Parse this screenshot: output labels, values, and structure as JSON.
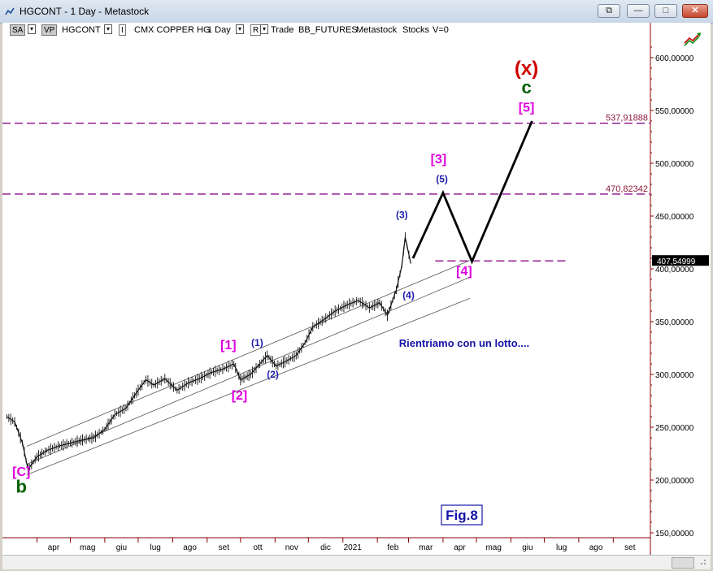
{
  "window": {
    "title": "HGCONT - 1 Day - Metastock",
    "btn_restore_extra": "⧉",
    "btn_minimize": "—",
    "btn_maximize": "□",
    "btn_close": "✕"
  },
  "toolbar": {
    "sa": "SA",
    "vp": "VP",
    "symbol": "HGCONT",
    "indicator_flag": "I",
    "security_name": "CMX COPPER HG",
    "period": "1 Day",
    "r_flag": "R",
    "trade": "Trade",
    "source": "BB_FUTURES",
    "app": "Metastock",
    "type": "Stocks",
    "volume": "V=0"
  },
  "chart_data": {
    "type": "line",
    "title": "",
    "xlabel": "",
    "ylabel": "",
    "ylim": [
      145,
      620
    ],
    "y_ticks": [
      "150,00000",
      "200,00000",
      "250,00000",
      "300,00000",
      "350,00000",
      "400,00000",
      "450,00000",
      "500,00000",
      "550,00000",
      "600,00000"
    ],
    "y_tick_values": [
      150,
      200,
      250,
      300,
      350,
      400,
      450,
      500,
      550,
      600
    ],
    "x_ticks": [
      "apr",
      "mag",
      "giu",
      "lug",
      "ago",
      "set",
      "ott",
      "nov",
      "dic",
      "2021",
      "feb",
      "mar",
      "apr",
      "mag",
      "giu",
      "lug",
      "ago",
      "set"
    ],
    "x_tick_values": [
      "2020-04",
      "2020-05",
      "2020-06",
      "2020-07",
      "2020-08",
      "2020-09",
      "2020-10",
      "2020-11",
      "2020-12",
      "2021-01",
      "2021-02",
      "2021-03",
      "2021-04",
      "2021-05",
      "2021-06",
      "2021-07",
      "2021-08",
      "2021-09"
    ],
    "levels": [
      {
        "label": "537,91888",
        "value": 537.92
      },
      {
        "label": "470,82342",
        "value": 470.82
      }
    ],
    "last_price": {
      "label": "407,54999",
      "value": 407.55
    },
    "series": [
      {
        "name": "",
        "x": [
          "2020-03-05",
          "2020-03-12",
          "2020-03-19",
          "2020-03-24",
          "2020-04-01",
          "2020-04-10",
          "2020-04-20",
          "2020-05-01",
          "2020-05-12",
          "2020-05-22",
          "2020-06-01",
          "2020-06-10",
          "2020-06-20",
          "2020-07-01",
          "2020-07-08",
          "2020-07-15",
          "2020-07-25",
          "2020-08-05",
          "2020-08-15",
          "2020-08-25",
          "2020-09-05",
          "2020-09-15",
          "2020-09-25",
          "2020-10-01",
          "2020-10-10",
          "2020-10-20",
          "2020-10-25",
          "2020-11-02",
          "2020-11-10",
          "2020-11-20",
          "2020-11-28",
          "2020-12-05",
          "2020-12-15",
          "2020-12-25",
          "2021-01-05",
          "2021-01-15",
          "2021-01-25",
          "2021-02-03",
          "2021-02-10",
          "2021-02-18",
          "2021-02-23",
          "2021-02-26",
          "2021-03-03"
        ],
        "y": [
          260,
          255,
          235,
          210,
          222,
          228,
          232,
          235,
          238,
          240,
          248,
          262,
          268,
          285,
          295,
          290,
          296,
          285,
          292,
          296,
          302,
          305,
          310,
          295,
          300,
          312,
          318,
          308,
          312,
          318,
          330,
          345,
          352,
          360,
          366,
          370,
          363,
          368,
          356,
          380,
          403,
          430,
          405
        ]
      },
      {
        "name": "",
        "x": [
          "2021-03-05",
          "2021-04-01",
          "2021-04-27",
          "2021-06-20"
        ],
        "y": [
          410,
          472,
          407,
          540
        ]
      }
    ],
    "channel": [
      {
        "x": [
          "2020-03-23",
          "2021-04-25"
        ],
        "y": [
          232,
          408
        ]
      },
      {
        "x": [
          "2020-03-23",
          "2021-04-25"
        ],
        "y": [
          215,
          392
        ]
      },
      {
        "x": [
          "2020-03-23",
          "2021-04-25"
        ],
        "y": [
          205,
          372
        ]
      }
    ],
    "wave_labels": [
      {
        "text": "[C]",
        "x": "2020-03-18",
        "y": 204,
        "color": "#e000e0"
      },
      {
        "text": "b",
        "x": "2020-03-18",
        "y": 188,
        "color": "#006000"
      },
      {
        "text": "[1]",
        "x": "2020-09-20",
        "y": 324,
        "color": "#e000e0"
      },
      {
        "text": "[2]",
        "x": "2020-09-30",
        "y": 276,
        "color": "#e000e0"
      },
      {
        "text": "(1)",
        "x": "2020-10-16",
        "y": 327,
        "color": "#1f1fb0"
      },
      {
        "text": "(2)",
        "x": "2020-10-30",
        "y": 297,
        "color": "#1f1fb0"
      },
      {
        "text": "(3)",
        "x": "2021-02-23",
        "y": 448,
        "color": "#1f1fb0"
      },
      {
        "text": "(4)",
        "x": "2021-03-01",
        "y": 372,
        "color": "#1f1fb0"
      },
      {
        "text": "[3]",
        "x": "2021-03-28",
        "y": 500,
        "color": "#e000e0"
      },
      {
        "text": "(5)",
        "x": "2021-03-31",
        "y": 482,
        "color": "#1f1fb0"
      },
      {
        "text": "[4]",
        "x": "2021-04-20",
        "y": 394,
        "color": "#e000e0"
      },
      {
        "text": "[5]",
        "x": "2021-06-15",
        "y": 549,
        "color": "#e000e0"
      },
      {
        "text": "c",
        "x": "2021-06-15",
        "y": 566,
        "color": "#006000"
      },
      {
        "text": "(x)",
        "x": "2021-06-15",
        "y": 584,
        "color": "#d00000"
      }
    ],
    "annotation": "Rientriamo con un lotto....",
    "fig_label": "Fig.8",
    "grid": true
  },
  "colors": {
    "price_axis": "#8b0000",
    "magenta": "#e000e0",
    "blue": "#1f1fb0",
    "dashed_level": "#8b0a8b"
  }
}
